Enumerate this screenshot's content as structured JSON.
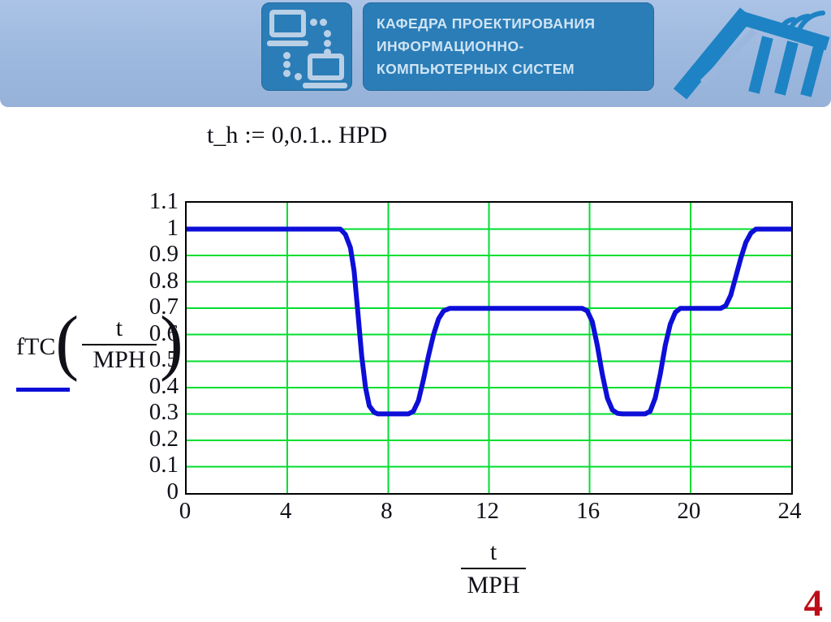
{
  "header": {
    "department_lines": [
      "КАФЕДРА ПРОЕКТИРОВАНИЯ",
      "ИНФОРМАЦИОННО-",
      "КОМПЬЮТЕРНЫХ СИСТЕМ"
    ],
    "icons": {
      "left": "computers-network-icon",
      "right": "university-logo"
    },
    "colors": {
      "band": "#9cb7dd",
      "box": "#2b7db7",
      "box_text": "#cfe4f4",
      "logo": "#1d83c4"
    }
  },
  "expression": {
    "lhs": "t_h",
    "assign": ":=",
    "rhs": "0,0.1.. HPD"
  },
  "page_number": "4",
  "chart_data": {
    "type": "line",
    "title": "",
    "xlabel": {
      "numerator": "t",
      "denominator": "MPH"
    },
    "ylabel": {
      "function": "fTC",
      "arg_numerator": "t",
      "arg_denominator": "MPH"
    },
    "x_axis": {
      "min": 0,
      "max": 24,
      "ticks": [
        0,
        4,
        8,
        12,
        16,
        20,
        24
      ]
    },
    "y_axis": {
      "min": 0,
      "max": 1.1,
      "ticks": [
        0,
        0.1,
        0.2,
        0.3,
        0.4,
        0.5,
        0.6,
        0.7,
        0.8,
        0.9,
        1,
        1.1
      ],
      "tick_labels": [
        "0",
        "0.1",
        "0.2",
        "0.3",
        "0.4",
        "0.5",
        "0.6",
        "0.7",
        "0.8",
        "0.9",
        "1",
        "1.1"
      ]
    },
    "grid": {
      "on": true,
      "color": "#00de2f",
      "x_lines": [
        4,
        8,
        12,
        16,
        20
      ],
      "y_lines": [
        0.1,
        0.2,
        0.3,
        0.4,
        0.5,
        0.6,
        0.7,
        0.8,
        0.9,
        1
      ]
    },
    "legend": {
      "position": "left-below-ylabel",
      "marker": "line",
      "color": "#0d0ed8"
    },
    "series": [
      {
        "name": "fTC(t/MPH)",
        "color": "#0d0ed8",
        "points": [
          [
            0,
            1
          ],
          [
            6.1,
            1
          ],
          [
            6.3,
            0.98
          ],
          [
            6.5,
            0.93
          ],
          [
            6.65,
            0.84
          ],
          [
            6.8,
            0.68
          ],
          [
            6.95,
            0.52
          ],
          [
            7.1,
            0.4
          ],
          [
            7.25,
            0.33
          ],
          [
            7.45,
            0.305
          ],
          [
            7.6,
            0.3
          ],
          [
            8.8,
            0.3
          ],
          [
            9.0,
            0.31
          ],
          [
            9.2,
            0.35
          ],
          [
            9.4,
            0.43
          ],
          [
            9.6,
            0.52
          ],
          [
            9.8,
            0.6
          ],
          [
            10.0,
            0.66
          ],
          [
            10.2,
            0.69
          ],
          [
            10.45,
            0.7
          ],
          [
            15.7,
            0.7
          ],
          [
            15.9,
            0.69
          ],
          [
            16.1,
            0.65
          ],
          [
            16.3,
            0.56
          ],
          [
            16.5,
            0.45
          ],
          [
            16.7,
            0.36
          ],
          [
            16.9,
            0.315
          ],
          [
            17.1,
            0.302
          ],
          [
            17.3,
            0.3
          ],
          [
            18.2,
            0.3
          ],
          [
            18.4,
            0.31
          ],
          [
            18.6,
            0.36
          ],
          [
            18.8,
            0.45
          ],
          [
            19.0,
            0.56
          ],
          [
            19.2,
            0.64
          ],
          [
            19.4,
            0.685
          ],
          [
            19.6,
            0.7
          ],
          [
            21.2,
            0.7
          ],
          [
            21.4,
            0.71
          ],
          [
            21.6,
            0.75
          ],
          [
            21.8,
            0.82
          ],
          [
            22.0,
            0.89
          ],
          [
            22.2,
            0.95
          ],
          [
            22.4,
            0.985
          ],
          [
            22.6,
            1
          ],
          [
            24,
            1
          ]
        ]
      }
    ]
  }
}
